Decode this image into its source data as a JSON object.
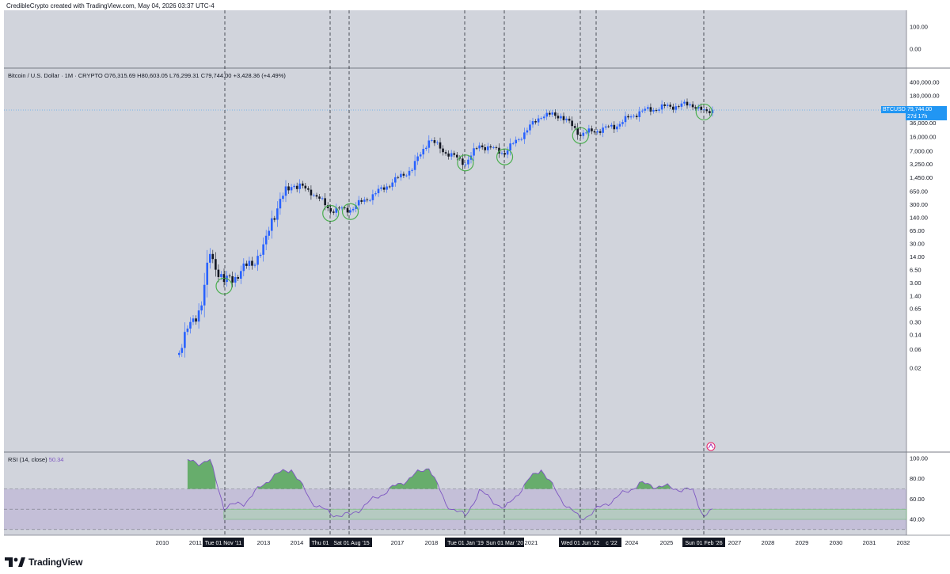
{
  "header": {
    "credit": "CredibleCrypto created with TradingView.com, May 04, 2026 03:37 UTC-4"
  },
  "legend": {
    "symbol": "Bitcoin / U.S. Dollar · 1M · CRYPTO",
    "open": "O76,315.69",
    "high": "H80,603.05",
    "low": "L76,299.31",
    "close": "C79,744.00",
    "change": "+3,428.36 (+4.49%)"
  },
  "price_tag": {
    "symbol": "BTCUSD",
    "price": "79,744.00",
    "countdown": "27d 17h"
  },
  "rsi_legend": {
    "label": "RSI (14, close)",
    "value": "50.34"
  },
  "brand": {
    "name": "TradingView"
  },
  "colors": {
    "background": "#d1d4dc",
    "candle_up": "#2962ff",
    "candle_down": "#131722",
    "rsi_line": "#7e57c2",
    "rsi_band": "#9575cd",
    "overbought_fill": "#43a047",
    "circle": "#4caf50",
    "price_tag": "#2196f3"
  },
  "chart_data": [
    {
      "type": "candlestick",
      "title": "Bitcoin / U.S. Dollar · 1M · CRYPTO",
      "scale": "log",
      "grid": false,
      "ylim": [
        0.005,
        900000
      ],
      "y_ticks": [
        "400,000.00",
        "180,000.00",
        "79,744.00",
        "36,000.00",
        "16,000.00",
        "7,000.00",
        "3,250.00",
        "1,450.00",
        "650.00",
        "300.00",
        "140.00",
        "65.00",
        "30.00",
        "14.00",
        "6.50",
        "3.00",
        "1.40",
        "0.65",
        "0.30",
        "0.14",
        "0.06",
        "0.02"
      ],
      "x_ticks": [
        "2010",
        "2011",
        "2013",
        "2014",
        "2017",
        "2018",
        "2021",
        "2024",
        "2025",
        "2027",
        "2028",
        "2029",
        "2030",
        "2031",
        "2032"
      ],
      "vertical_markers": [
        "Tue 01 Nov '11",
        "Thu 01",
        "Sat 01 Aug '15",
        "Tue 01 Jan '19",
        "Sun 01 Mar '20",
        "Wed 01 Jun '22",
        "c '22",
        "Sun 01 Feb '26"
      ],
      "circled_lows": [
        {
          "date": "2011-11",
          "price": 2.5
        },
        {
          "date": "2015-01",
          "price": 180
        },
        {
          "date": "2015-08",
          "price": 200
        },
        {
          "date": "2019-01",
          "price": 3500
        },
        {
          "date": "2020-03",
          "price": 5000
        },
        {
          "date": "2022-06",
          "price": 17500
        },
        {
          "date": "2026-02",
          "price": 70000
        }
      ],
      "close_path": [
        {
          "date": "2010-07",
          "price": 0.06
        },
        {
          "date": "2010-11",
          "price": 0.25
        },
        {
          "date": "2011-03",
          "price": 0.9
        },
        {
          "date": "2011-06",
          "price": 17
        },
        {
          "date": "2011-11",
          "price": 3
        },
        {
          "date": "2012-06",
          "price": 6.5
        },
        {
          "date": "2013-01",
          "price": 20
        },
        {
          "date": "2013-04",
          "price": 140
        },
        {
          "date": "2013-11",
          "price": 1100
        },
        {
          "date": "2014-06",
          "price": 650
        },
        {
          "date": "2015-01",
          "price": 220
        },
        {
          "date": "2015-08",
          "price": 230
        },
        {
          "date": "2016-06",
          "price": 650
        },
        {
          "date": "2017-06",
          "price": 2500
        },
        {
          "date": "2017-12",
          "price": 14000
        },
        {
          "date": "2018-06",
          "price": 6500
        },
        {
          "date": "2019-01",
          "price": 3500
        },
        {
          "date": "2019-06",
          "price": 10000
        },
        {
          "date": "2020-03",
          "price": 6400
        },
        {
          "date": "2020-12",
          "price": 29000
        },
        {
          "date": "2021-04",
          "price": 58000
        },
        {
          "date": "2021-11",
          "price": 57000
        },
        {
          "date": "2022-06",
          "price": 19000
        },
        {
          "date": "2023-06",
          "price": 30000
        },
        {
          "date": "2024-03",
          "price": 71000
        },
        {
          "date": "2024-12",
          "price": 94000
        },
        {
          "date": "2025-10",
          "price": 110000
        },
        {
          "date": "2026-02",
          "price": 68000
        },
        {
          "date": "2026-05",
          "price": 79744
        }
      ],
      "last_price": 79744.0
    },
    {
      "type": "line",
      "title": "RSI (14, close)",
      "ylim": [
        25,
        105
      ],
      "y_ticks": [
        100,
        80,
        60,
        40
      ],
      "band": [
        30,
        70
      ],
      "midline": 50,
      "current": 50.34,
      "series": [
        {
          "values": [
            {
              "date": "2010-10",
              "rsi": 97
            },
            {
              "date": "2011-02",
              "rsi": 96
            },
            {
              "date": "2011-06",
              "rsi": 98
            },
            {
              "date": "2011-11",
              "rsi": 52
            },
            {
              "date": "2012-06",
              "rsi": 56
            },
            {
              "date": "2013-04",
              "rsi": 82
            },
            {
              "date": "2013-11",
              "rsi": 90
            },
            {
              "date": "2014-06",
              "rsi": 58
            },
            {
              "date": "2015-01",
              "rsi": 45
            },
            {
              "date": "2015-08",
              "rsi": 44
            },
            {
              "date": "2016-06",
              "rsi": 63
            },
            {
              "date": "2017-06",
              "rsi": 82
            },
            {
              "date": "2017-12",
              "rsi": 92
            },
            {
              "date": "2018-06",
              "rsi": 55
            },
            {
              "date": "2019-01",
              "rsi": 43
            },
            {
              "date": "2019-06",
              "rsi": 68
            },
            {
              "date": "2020-03",
              "rsi": 50
            },
            {
              "date": "2020-12",
              "rsi": 80
            },
            {
              "date": "2021-04",
              "rsi": 90
            },
            {
              "date": "2021-11",
              "rsi": 60
            },
            {
              "date": "2022-06",
              "rsi": 40
            },
            {
              "date": "2023-06",
              "rsi": 60
            },
            {
              "date": "2024-03",
              "rsi": 75
            },
            {
              "date": "2024-12",
              "rsi": 72
            },
            {
              "date": "2025-10",
              "rsi": 68
            },
            {
              "date": "2026-02",
              "rsi": 43
            },
            {
              "date": "2026-05",
              "rsi": 50.34
            }
          ]
        }
      ]
    }
  ],
  "top_pane": {
    "y_ticks": [
      "100.00",
      "0.00"
    ]
  }
}
